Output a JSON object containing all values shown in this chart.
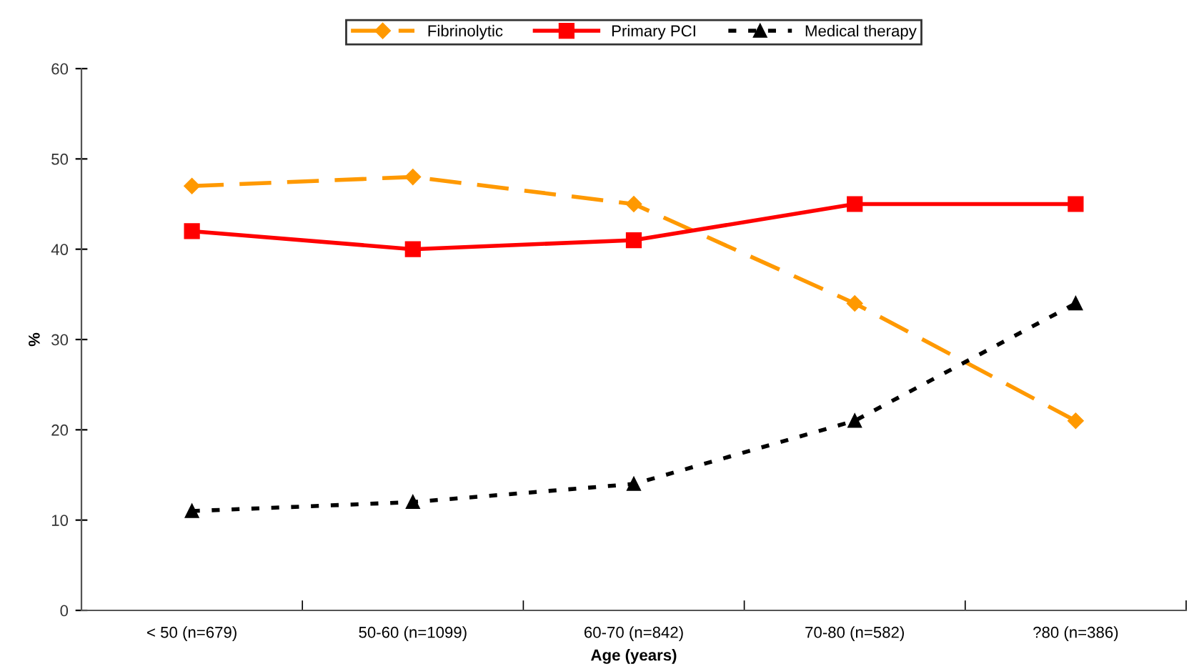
{
  "chart_data": {
    "type": "line",
    "xlabel": "Age (years)",
    "ylabel": "%",
    "categories": [
      "< 50 (n=679)",
      "50-60 (n=1099)",
      "60-70 (n=842)",
      "70-80 (n=582)",
      "?80 (n=386)"
    ],
    "series": [
      {
        "name": "Fibrinolytic",
        "color": "#ff9900",
        "values": [
          47,
          48,
          45,
          34,
          21
        ],
        "marker": "diamond",
        "line_style": "dashed"
      },
      {
        "name": "Primary PCI",
        "color": "#ff0000",
        "values": [
          42,
          40,
          41,
          45,
          45
        ],
        "marker": "square",
        "line_style": "solid"
      },
      {
        "name": "Medical therapy",
        "color": "#000000",
        "values": [
          11,
          12,
          14,
          21,
          34
        ],
        "marker": "triangle",
        "line_style": "dotted"
      }
    ],
    "ylim": [
      0,
      60
    ],
    "yticks": [
      0,
      10,
      20,
      30,
      40,
      50,
      60
    ],
    "grid": false,
    "legend": "top"
  }
}
